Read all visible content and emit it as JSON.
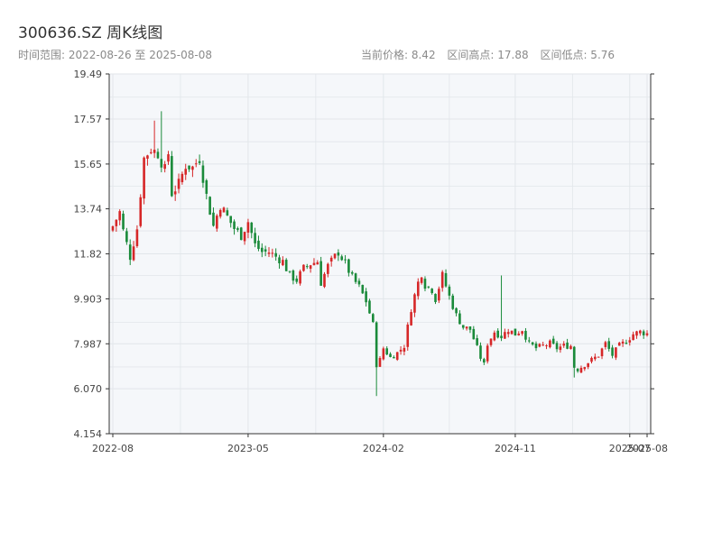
{
  "header": {
    "title": "300636.SZ 周K线图",
    "date_range": "时间范围: 2022-08-26 至 2025-08-08",
    "current_price": "当前价格: 8.42",
    "high": "区间高点: 17.88",
    "low": "区间低点: 5.76"
  },
  "colors": {
    "up": "#d62728",
    "down": "#1a8a3a",
    "plot_bg": "#f5f7fa",
    "grid": "#e2e6ea"
  },
  "chart_data": {
    "type": "candlestick",
    "title": "300636.SZ 周K线图",
    "grid": true,
    "ylim": [
      4.154,
      19.49
    ],
    "y_ticks": [
      "4.154",
      "6.070",
      "7.987",
      "9.903",
      "11.82",
      "13.74",
      "15.65",
      "17.57",
      "19.49"
    ],
    "x_ticks": [
      {
        "label": "2022-08",
        "week": 0
      },
      {
        "label": "2023-05",
        "week": 39
      },
      {
        "label": "2024-02",
        "week": 78
      },
      {
        "label": "2024-11",
        "week": 116
      },
      {
        "label": "2025-07",
        "week": 149
      },
      {
        "label": "2025-08",
        "week": 154
      }
    ],
    "x_start": "2022-08-26",
    "x_end": "2025-08-08",
    "close_path": [
      {
        "week": 0,
        "close": 13.0
      },
      {
        "week": 2,
        "close": 13.6
      },
      {
        "week": 3,
        "close": 12.8
      },
      {
        "week": 5,
        "close": 11.7
      },
      {
        "week": 7,
        "close": 12.9
      },
      {
        "week": 9,
        "close": 15.9
      },
      {
        "week": 11,
        "close": 16.3
      },
      {
        "week": 13,
        "close": 16.1
      },
      {
        "week": 15,
        "close": 15.4
      },
      {
        "week": 16,
        "close": 16.1
      },
      {
        "week": 17,
        "close": 14.4
      },
      {
        "week": 19,
        "close": 14.8
      },
      {
        "week": 21,
        "close": 15.6
      },
      {
        "week": 23,
        "close": 15.5
      },
      {
        "week": 25,
        "close": 15.9
      },
      {
        "week": 27,
        "close": 14.3
      },
      {
        "week": 29,
        "close": 13.0
      },
      {
        "week": 31,
        "close": 13.9
      },
      {
        "week": 33,
        "close": 13.4
      },
      {
        "week": 35,
        "close": 12.9
      },
      {
        "week": 37,
        "close": 12.6
      },
      {
        "week": 39,
        "close": 13.2
      },
      {
        "week": 41,
        "close": 12.2
      },
      {
        "week": 43,
        "close": 11.9
      },
      {
        "week": 45,
        "close": 11.9
      },
      {
        "week": 47,
        "close": 11.7
      },
      {
        "week": 49,
        "close": 11.5
      },
      {
        "week": 51,
        "close": 10.9
      },
      {
        "week": 53,
        "close": 10.7
      },
      {
        "week": 55,
        "close": 11.2
      },
      {
        "week": 57,
        "close": 11.4
      },
      {
        "week": 59,
        "close": 11.5
      },
      {
        "week": 60,
        "close": 10.6
      },
      {
        "week": 62,
        "close": 11.3
      },
      {
        "week": 64,
        "close": 11.7
      },
      {
        "week": 65,
        "close": 11.9
      },
      {
        "week": 67,
        "close": 11.4
      },
      {
        "week": 69,
        "close": 10.8
      },
      {
        "week": 71,
        "close": 10.4
      },
      {
        "week": 73,
        "close": 9.8
      },
      {
        "week": 75,
        "close": 8.8
      },
      {
        "week": 76,
        "close": 7.1
      },
      {
        "week": 77,
        "close": 7.3
      },
      {
        "week": 78,
        "close": 7.8
      },
      {
        "week": 80,
        "close": 7.4
      },
      {
        "week": 82,
        "close": 7.6
      },
      {
        "week": 84,
        "close": 7.9
      },
      {
        "week": 86,
        "close": 9.5
      },
      {
        "week": 88,
        "close": 10.6
      },
      {
        "week": 89,
        "close": 11.0
      },
      {
        "week": 90,
        "close": 10.5
      },
      {
        "week": 92,
        "close": 10.3
      },
      {
        "week": 93,
        "close": 9.9
      },
      {
        "week": 95,
        "close": 10.9
      },
      {
        "week": 97,
        "close": 10.0
      },
      {
        "week": 99,
        "close": 9.2
      },
      {
        "week": 101,
        "close": 8.7
      },
      {
        "week": 103,
        "close": 8.6
      },
      {
        "week": 105,
        "close": 7.8
      },
      {
        "week": 106,
        "close": 7.4
      },
      {
        "week": 107,
        "close": 7.1
      },
      {
        "week": 108,
        "close": 8.0
      },
      {
        "week": 110,
        "close": 8.5
      },
      {
        "week": 112,
        "close": 8.3
      },
      {
        "week": 114,
        "close": 8.6
      },
      {
        "week": 116,
        "close": 8.4
      },
      {
        "week": 118,
        "close": 8.6
      },
      {
        "week": 120,
        "close": 8.0
      },
      {
        "week": 122,
        "close": 7.8
      },
      {
        "week": 124,
        "close": 7.9
      },
      {
        "week": 126,
        "close": 8.0
      },
      {
        "week": 128,
        "close": 7.8
      },
      {
        "week": 130,
        "close": 7.9
      },
      {
        "week": 132,
        "close": 7.9
      },
      {
        "week": 133,
        "close": 7.0
      },
      {
        "week": 134,
        "close": 6.9
      },
      {
        "week": 136,
        "close": 7.1
      },
      {
        "week": 138,
        "close": 7.3
      },
      {
        "week": 140,
        "close": 7.5
      },
      {
        "week": 142,
        "close": 8.0
      },
      {
        "week": 144,
        "close": 7.5
      },
      {
        "week": 146,
        "close": 7.9
      },
      {
        "week": 148,
        "close": 8.1
      },
      {
        "week": 150,
        "close": 8.4
      },
      {
        "week": 152,
        "close": 8.5
      },
      {
        "week": 154,
        "close": 8.42
      }
    ],
    "spikes": [
      {
        "week": 12,
        "high": 17.5
      },
      {
        "week": 14,
        "high": 17.9
      },
      {
        "week": 76,
        "low": 5.76
      },
      {
        "week": 112,
        "high": 10.9
      },
      {
        "week": 133,
        "low": 6.55
      }
    ]
  }
}
